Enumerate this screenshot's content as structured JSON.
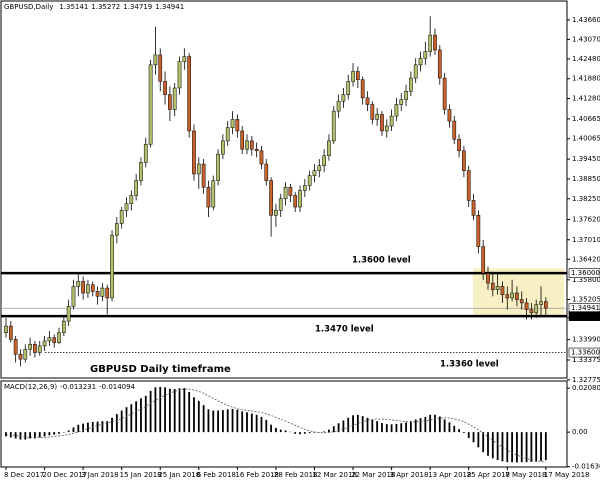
{
  "chart_data": [
    {
      "type": "candlestick",
      "title": "GBPUSD,Daily",
      "up_color": "#b3bf6a",
      "down_color": "#c8622d",
      "ylim": [
        1.3283,
        1.442
      ],
      "yticks": [
        {
          "value": 1.4366,
          "label": "1.43660"
        },
        {
          "value": 1.4307,
          "label": "1.43070"
        },
        {
          "value": 1.4248,
          "label": "1.42480"
        },
        {
          "value": 1.4188,
          "label": "1.41880"
        },
        {
          "value": 1.4128,
          "label": "1.41280"
        },
        1.40665,
        1.40065,
        {
          "value": 1.3945,
          "label": "1.39450"
        },
        {
          "value": 1.3885,
          "label": "1.38850"
        },
        {
          "value": 1.3825,
          "label": "1.38250"
        },
        {
          "value": 1.3762,
          "label": "1.37620"
        },
        {
          "value": 1.3701,
          "label": "1.37010"
        },
        {
          "value": 1.3642,
          "label": "1.36420"
        },
        {
          "value": 1.358,
          "label": "1.35800"
        },
        1.35205,
        {
          "value": 1.3465,
          "label": "1.34650"
        },
        {
          "value": 1.3399,
          "label": "1.33990"
        },
        1.33375,
        1.32775
      ],
      "levels": [
        {
          "value": 1.36,
          "label": "1.36000",
          "style": "thick"
        },
        {
          "value": 1.34941,
          "label": "1.34941",
          "style": "thin"
        },
        {
          "value": 1.347,
          "label": "1.34700",
          "style": "thick"
        },
        {
          "value": 1.336,
          "label": "1.33600",
          "style": "dotted"
        }
      ],
      "highlight": [
        1.347,
        1.3615
      ],
      "highlight_color": "#f7f0c4",
      "annotations": [
        "1.3600 level",
        "1.3470 level",
        "1.3360 level",
        "GBPUSD Daily timeframe"
      ],
      "categories": [
        "8 Dec 2017",
        null,
        null,
        null,
        null,
        null,
        null,
        null,
        "20 Dec 2017",
        null,
        null,
        null,
        null,
        null,
        null,
        null,
        "3 Jan 2018",
        null,
        null,
        null,
        null,
        null,
        null,
        null,
        "15 Jan 2018",
        null,
        null,
        null,
        null,
        null,
        null,
        null,
        "25 Jan 2018",
        null,
        null,
        null,
        null,
        null,
        null,
        null,
        "6 Feb 2018",
        null,
        null,
        null,
        null,
        null,
        null,
        null,
        "16 Feb 2018",
        null,
        null,
        null,
        null,
        null,
        null,
        null,
        "28 Feb 2018",
        null,
        null,
        null,
        null,
        null,
        null,
        null,
        "12 Mar 2018",
        null,
        null,
        null,
        null,
        null,
        null,
        null,
        "22 Mar 2018",
        null,
        null,
        null,
        null,
        null,
        null,
        null,
        "3 Apr 2018",
        null,
        null,
        null,
        null,
        null,
        null,
        null,
        "13 Apr 2018",
        null,
        null,
        null,
        null,
        null,
        null,
        null,
        "25 Apr 2018",
        null,
        null,
        null,
        null,
        null,
        null,
        null,
        "7 May 2018",
        null,
        null,
        null,
        null,
        null,
        null,
        null,
        "17 May 2018"
      ],
      "ohlc": [
        [
          1.342,
          1.3465,
          1.3405,
          1.344
        ],
        [
          1.344,
          1.3455,
          1.339,
          1.34
        ],
        [
          1.34,
          1.341,
          1.333,
          1.3355
        ],
        [
          1.3355,
          1.337,
          1.3318,
          1.334
        ],
        [
          1.334,
          1.3385,
          1.333,
          1.337
        ],
        [
          1.337,
          1.3405,
          1.335,
          1.3385
        ],
        [
          1.3385,
          1.3395,
          1.3345,
          1.336
        ],
        [
          1.336,
          1.3395,
          1.335,
          1.338
        ],
        [
          1.338,
          1.341,
          1.3365,
          1.3395
        ],
        [
          1.3395,
          1.3425,
          1.338,
          1.3405
        ],
        [
          1.3405,
          1.3415,
          1.3375,
          1.339
        ],
        [
          1.339,
          1.3435,
          1.3385,
          1.342
        ],
        [
          1.342,
          1.347,
          1.341,
          1.3455
        ],
        [
          1.3455,
          1.352,
          1.344,
          1.35
        ],
        [
          1.35,
          1.358,
          1.349,
          1.356
        ],
        [
          1.356,
          1.36,
          1.353,
          1.3575
        ],
        [
          1.3575,
          1.359,
          1.352,
          1.354
        ],
        [
          1.354,
          1.358,
          1.3525,
          1.3565
        ],
        [
          1.3565,
          1.3575,
          1.353,
          1.3545
        ],
        [
          1.3545,
          1.356,
          1.3505,
          1.353
        ],
        [
          1.353,
          1.357,
          1.3515,
          1.3555
        ],
        [
          1.3555,
          1.3565,
          1.3475,
          1.3525
        ],
        [
          1.3525,
          1.373,
          1.3515,
          1.3715
        ],
        [
          1.3715,
          1.377,
          1.369,
          1.375
        ],
        [
          1.375,
          1.38,
          1.3735,
          1.379
        ],
        [
          1.379,
          1.383,
          1.377,
          1.381
        ],
        [
          1.381,
          1.385,
          1.379,
          1.3835
        ],
        [
          1.3835,
          1.39,
          1.382,
          1.388
        ],
        [
          1.388,
          1.395,
          1.3865,
          1.3935
        ],
        [
          1.3935,
          1.401,
          1.392,
          1.399
        ],
        [
          1.399,
          1.4245,
          1.398,
          1.423
        ],
        [
          1.423,
          1.4345,
          1.42,
          1.426
        ],
        [
          1.426,
          1.428,
          1.415,
          1.418
        ],
        [
          1.418,
          1.421,
          1.411,
          1.414
        ],
        [
          1.414,
          1.4165,
          1.406,
          1.4095
        ],
        [
          1.4095,
          1.4175,
          1.4075,
          1.416
        ],
        [
          1.416,
          1.4255,
          1.414,
          1.424
        ],
        [
          1.424,
          1.428,
          1.4215,
          1.4255
        ],
        [
          1.4255,
          1.4265,
          1.401,
          1.403
        ],
        [
          1.403,
          1.405,
          1.388,
          1.39
        ],
        [
          1.39,
          1.395,
          1.3855,
          1.393
        ],
        [
          1.393,
          1.3945,
          1.384,
          1.386
        ],
        [
          1.386,
          1.388,
          1.377,
          1.38
        ],
        [
          1.38,
          1.3895,
          1.379,
          1.388
        ],
        [
          1.388,
          1.3975,
          1.3865,
          1.396
        ],
        [
          1.396,
          1.402,
          1.3945,
          1.4
        ],
        [
          1.4,
          1.406,
          1.3985,
          1.404
        ],
        [
          1.404,
          1.409,
          1.402,
          1.4065
        ],
        [
          1.4065,
          1.408,
          1.401,
          1.403
        ],
        [
          1.403,
          1.4045,
          1.396,
          1.3975
        ],
        [
          1.3975,
          1.402,
          1.396,
          1.4
        ],
        [
          1.4,
          1.4015,
          1.3955,
          1.3975
        ],
        [
          1.3975,
          1.3995,
          1.395,
          1.397
        ],
        [
          1.397,
          1.3985,
          1.3915,
          1.393
        ],
        [
          1.393,
          1.3945,
          1.3865,
          1.388
        ],
        [
          1.388,
          1.389,
          1.371,
          1.3775
        ],
        [
          1.3775,
          1.381,
          1.374,
          1.379
        ],
        [
          1.379,
          1.384,
          1.377,
          1.3825
        ],
        [
          1.3825,
          1.3875,
          1.3805,
          1.386
        ],
        [
          1.386,
          1.387,
          1.3815,
          1.3835
        ],
        [
          1.3835,
          1.3845,
          1.3785,
          1.38
        ],
        [
          1.38,
          1.3865,
          1.3785,
          1.385
        ],
        [
          1.385,
          1.3885,
          1.383,
          1.3865
        ],
        [
          1.3865,
          1.391,
          1.385,
          1.3895
        ],
        [
          1.3895,
          1.393,
          1.3875,
          1.391
        ],
        [
          1.391,
          1.3945,
          1.389,
          1.3925
        ],
        [
          1.3925,
          1.3975,
          1.3905,
          1.3955
        ],
        [
          1.3955,
          1.402,
          1.394,
          1.4
        ],
        [
          1.4,
          1.4105,
          1.399,
          1.409
        ],
        [
          1.409,
          1.414,
          1.407,
          1.412
        ],
        [
          1.412,
          1.416,
          1.41,
          1.414
        ],
        [
          1.414,
          1.42,
          1.4125,
          1.418
        ],
        [
          1.418,
          1.4235,
          1.4165,
          1.421
        ],
        [
          1.421,
          1.4225,
          1.416,
          1.4185
        ],
        [
          1.4185,
          1.4195,
          1.411,
          1.413
        ],
        [
          1.413,
          1.415,
          1.409,
          1.411
        ],
        [
          1.411,
          1.412,
          1.405,
          1.4065
        ],
        [
          1.4065,
          1.41,
          1.4045,
          1.408
        ],
        [
          1.408,
          1.409,
          1.4015,
          1.403
        ],
        [
          1.403,
          1.4065,
          1.401,
          1.4045
        ],
        [
          1.4045,
          1.4095,
          1.403,
          1.4075
        ],
        [
          1.4075,
          1.413,
          1.406,
          1.411
        ],
        [
          1.411,
          1.4145,
          1.409,
          1.4125
        ],
        [
          1.4125,
          1.417,
          1.4105,
          1.415
        ],
        [
          1.415,
          1.421,
          1.4135,
          1.419
        ],
        [
          1.419,
          1.425,
          1.4175,
          1.423
        ],
        [
          1.423,
          1.427,
          1.421,
          1.425
        ],
        [
          1.425,
          1.43,
          1.423,
          1.427
        ],
        [
          1.427,
          1.4377,
          1.4255,
          1.432
        ],
        [
          1.432,
          1.434,
          1.426,
          1.4275
        ],
        [
          1.4275,
          1.429,
          1.417,
          1.419
        ],
        [
          1.419,
          1.4205,
          1.408,
          1.4095
        ],
        [
          1.4095,
          1.411,
          1.404,
          1.406
        ],
        [
          1.406,
          1.4075,
          1.399,
          1.4005
        ],
        [
          1.4005,
          1.402,
          1.395,
          1.397
        ],
        [
          1.397,
          1.3985,
          1.389,
          1.391
        ],
        [
          1.391,
          1.3925,
          1.38,
          1.382
        ],
        [
          1.382,
          1.384,
          1.376,
          1.3775
        ],
        [
          1.3775,
          1.379,
          1.366,
          1.368
        ],
        [
          1.368,
          1.37,
          1.358,
          1.36
        ],
        [
          1.36,
          1.362,
          1.355,
          1.357
        ],
        [
          1.357,
          1.3605,
          1.353,
          1.355
        ],
        [
          1.355,
          1.36,
          1.3535,
          1.356
        ],
        [
          1.356,
          1.3575,
          1.351,
          1.3535
        ],
        [
          1.3535,
          1.356,
          1.349,
          1.3525
        ],
        [
          1.3525,
          1.358,
          1.3515,
          1.354
        ],
        [
          1.354,
          1.356,
          1.35,
          1.352
        ],
        [
          1.352,
          1.3545,
          1.349,
          1.351
        ],
        [
          1.351,
          1.3525,
          1.346,
          1.349
        ],
        [
          1.349,
          1.351,
          1.346,
          1.348
        ],
        [
          1.348,
          1.352,
          1.3465,
          1.3505
        ],
        [
          1.3505,
          1.356,
          1.347,
          1.3514
        ],
        [
          1.35141,
          1.35272,
          1.34719,
          1.34941
        ]
      ]
    },
    {
      "type": "macd",
      "title": "MACD(12,26,9)",
      "ylim": [
        -0.0165,
        0.0242
      ],
      "yticks": [
        0.020809,
        {
          "value": 0,
          "label": "0.00"
        },
        -0.016368
      ],
      "histogram": [
        -0.002,
        -0.0025,
        -0.003,
        -0.0035,
        -0.0035,
        -0.003,
        -0.003,
        -0.0025,
        -0.002,
        -0.0015,
        -0.0012,
        -0.0008,
        -0.0002,
        0.0008,
        0.0022,
        0.0035,
        0.004,
        0.0045,
        0.0048,
        0.005,
        0.0052,
        0.0052,
        0.0068,
        0.0085,
        0.0102,
        0.0118,
        0.0132,
        0.0146,
        0.016,
        0.0172,
        0.0195,
        0.0212,
        0.0214,
        0.0212,
        0.0205,
        0.0204,
        0.0208,
        0.0209,
        0.019,
        0.0165,
        0.0148,
        0.0128,
        0.0108,
        0.0102,
        0.0102,
        0.0104,
        0.0108,
        0.011,
        0.0106,
        0.0098,
        0.0094,
        0.0088,
        0.0082,
        0.0072,
        0.0058,
        0.0035,
        0.002,
        0.0012,
        0.0008,
        0.0002,
        -0.0008,
        -0.001,
        -0.0008,
        -0.0005,
        -0.0003,
        -0.0001,
        0.0003,
        0.0012,
        0.0028,
        0.0042,
        0.0055,
        0.0068,
        0.008,
        0.0082,
        0.0076,
        0.0068,
        0.0058,
        0.0052,
        0.0043,
        0.0038,
        0.0037,
        0.0039,
        0.0042,
        0.0046,
        0.0052,
        0.006,
        0.0066,
        0.0072,
        0.0082,
        0.0082,
        0.0074,
        0.006,
        0.0046,
        0.003,
        0.0014,
        -0.0004,
        -0.0028,
        -0.0048,
        -0.0072,
        -0.0095,
        -0.0112,
        -0.0124,
        -0.0132,
        -0.0138,
        -0.0142,
        -0.0142,
        -0.0143,
        -0.0142,
        -0.0142,
        -0.0141,
        -0.014,
        -0.0136,
        -0.013231
      ],
      "signal": [
        -0.001,
        -0.0013,
        -0.0016,
        -0.002,
        -0.0023,
        -0.0025,
        -0.0026,
        -0.0026,
        -0.0025,
        -0.0023,
        -0.0021,
        -0.0018,
        -0.0015,
        -0.0011,
        -0.0006,
        0.0001,
        0.0008,
        0.0016,
        0.0024,
        0.0031,
        0.0038,
        0.0044,
        0.0049,
        0.0056,
        0.0064,
        0.0074,
        0.0086,
        0.0098,
        0.011,
        0.0122,
        0.0136,
        0.015,
        0.0163,
        0.0175,
        0.0185,
        0.0193,
        0.0199,
        0.0203,
        0.0203,
        0.0199,
        0.0193,
        0.0184,
        0.0172,
        0.016,
        0.0148,
        0.0137,
        0.0127,
        0.0118,
        0.0111,
        0.0106,
        0.0103,
        0.01,
        0.0097,
        0.0093,
        0.0087,
        0.0079,
        0.007,
        0.0061,
        0.0052,
        0.0042,
        0.0032,
        0.0022,
        0.0013,
        0.0006,
        0.0001,
        -0.0002,
        -0.0003,
        -0.0002,
        0.0002,
        0.0008,
        0.0015,
        0.0023,
        0.0032,
        0.0041,
        0.0049,
        0.0056,
        0.006,
        0.0062,
        0.0062,
        0.006,
        0.0058,
        0.0055,
        0.0052,
        0.005,
        0.0048,
        0.0049,
        0.0051,
        0.0054,
        0.0058,
        0.0063,
        0.0066,
        0.0068,
        0.0067,
        0.0063,
        0.0057,
        0.0049,
        0.0038,
        0.0025,
        0.0011,
        -0.0006,
        -0.0023,
        -0.004,
        -0.0056,
        -0.0071,
        -0.0085,
        -0.0098,
        -0.0109,
        -0.0118,
        -0.0126,
        -0.0131,
        -0.0135,
        -0.0139,
        -0.014094
      ]
    }
  ]
}
